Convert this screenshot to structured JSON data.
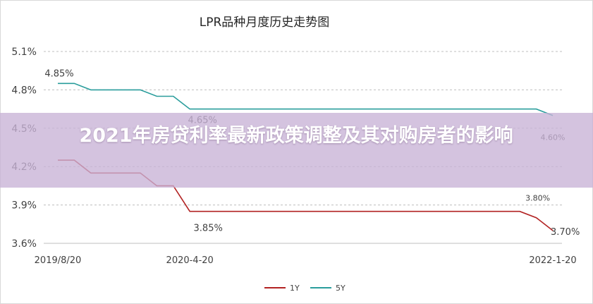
{
  "chart_data": {
    "type": "line",
    "title": "LPR品种月度历史走势图",
    "x_tick_labels": [
      "2019/8/20",
      "2020-4-20",
      "2022-1-20"
    ],
    "yticks": [
      "5.1%",
      "4.8%",
      "4.5%",
      "4.2%",
      "3.9%",
      "3.6%"
    ],
    "ylim": [
      3.6,
      5.1
    ],
    "grid": true,
    "legend": "bottom",
    "series": [
      {
        "name": "1Y",
        "color": "#b22222",
        "values": [
          4.25,
          4.25,
          4.15,
          4.15,
          4.15,
          4.15,
          4.05,
          4.05,
          3.85,
          3.85,
          3.85,
          3.85,
          3.85,
          3.85,
          3.85,
          3.85,
          3.85,
          3.85,
          3.85,
          3.85,
          3.85,
          3.85,
          3.85,
          3.85,
          3.85,
          3.85,
          3.85,
          3.85,
          3.85,
          3.8,
          3.7
        ],
        "labels": [
          {
            "index": 8,
            "text": "3.85%"
          },
          {
            "index": 29,
            "text": "3.80%"
          },
          {
            "index": 30,
            "text": "3.70%"
          }
        ]
      },
      {
        "name": "5Y",
        "color": "#2a9d9c",
        "values": [
          4.85,
          4.85,
          4.8,
          4.8,
          4.8,
          4.8,
          4.75,
          4.75,
          4.65,
          4.65,
          4.65,
          4.65,
          4.65,
          4.65,
          4.65,
          4.65,
          4.65,
          4.65,
          4.65,
          4.65,
          4.65,
          4.65,
          4.65,
          4.65,
          4.65,
          4.65,
          4.65,
          4.65,
          4.65,
          4.65,
          4.6
        ],
        "labels": [
          {
            "index": 0,
            "text": "4.85%"
          },
          {
            "index": 8,
            "text": "4.65%"
          },
          {
            "index": 30,
            "text": "4.60%"
          }
        ]
      }
    ]
  },
  "overlay": {
    "headline": "2021年房贷利率最新政策调整及其对购房者的影响"
  }
}
